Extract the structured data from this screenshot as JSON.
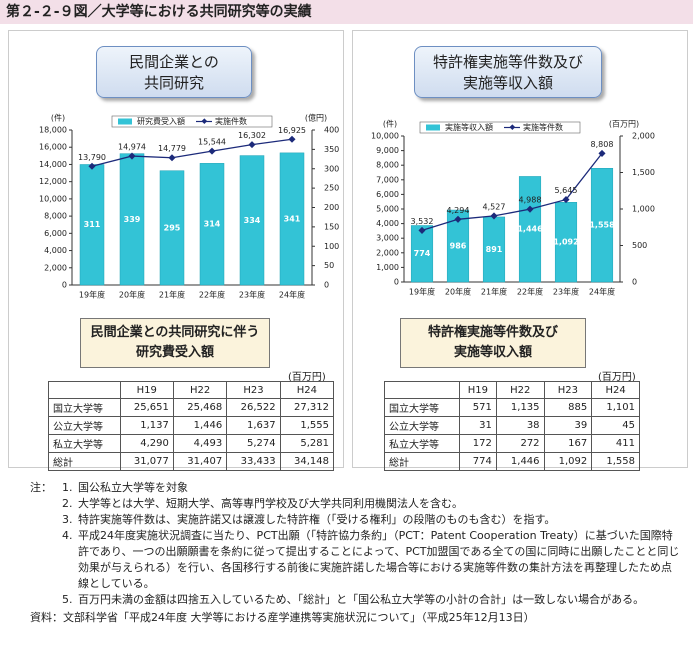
{
  "header": {
    "title": "第２-２-９図／大学等における共同研究等の実績"
  },
  "chart_data": [
    {
      "type": "combo",
      "title": "民間企業との\n共同研究",
      "categories": [
        "19年度",
        "20年度",
        "21年度",
        "22年度",
        "23年度",
        "24年度"
      ],
      "y_unit": "(件)",
      "y2_unit": "(億円)",
      "ylim": [
        0,
        18000
      ],
      "yticks": [
        0,
        {
          "value": 2000,
          "label": "2,000"
        },
        {
          "value": 4000,
          "label": "4,000"
        },
        {
          "value": 6000,
          "label": "6,000"
        },
        {
          "value": 8000,
          "label": "8,000"
        },
        {
          "value": 10000,
          "label": "10,000"
        },
        {
          "value": 12000,
          "label": "12,000"
        },
        {
          "value": 14000,
          "label": "14,000"
        },
        {
          "value": 16000,
          "label": "16,000"
        },
        {
          "value": 18000,
          "label": "18,000"
        }
      ],
      "y2lim": [
        0,
        400
      ],
      "y2ticks": [
        0,
        50,
        100,
        150,
        200,
        250,
        300,
        350,
        400
      ],
      "series": [
        {
          "name": "研究費受入額",
          "type": "bar",
          "axis": "y2",
          "color": "#33c3d6",
          "values": [
            311,
            339,
            295,
            314,
            334,
            341
          ]
        },
        {
          "name": "実施件数",
          "type": "line",
          "color": "#1c2a7a",
          "values": [
            13790,
            14974,
            14779,
            15544,
            16302,
            16925
          ],
          "value_labels": [
            "13,790",
            "14,974",
            "14,779",
            "15,544",
            "16,302",
            "16,925"
          ]
        }
      ]
    },
    {
      "type": "combo",
      "title": "特許権実施等件数及び\n実施等収入額",
      "categories": [
        "19年度",
        "20年度",
        "21年度",
        "22年度",
        "23年度",
        "24年度"
      ],
      "y_unit": "(件)",
      "y2_unit": "(百万円)",
      "ylim": [
        0,
        10000
      ],
      "yticks": [
        0,
        {
          "value": 1000,
          "label": "1,000"
        },
        {
          "value": 2000,
          "label": "2,000"
        },
        {
          "value": 3000,
          "label": "3,000"
        },
        {
          "value": 4000,
          "label": "4,000"
        },
        {
          "value": 5000,
          "label": "5,000"
        },
        {
          "value": 6000,
          "label": "6,000"
        },
        {
          "value": 7000,
          "label": "7,000"
        },
        {
          "value": 8000,
          "label": "8,000"
        },
        {
          "value": 9000,
          "label": "9,000"
        },
        {
          "value": 10000,
          "label": "10,000"
        }
      ],
      "y2lim": [
        0,
        2000
      ],
      "y2ticks": [
        0,
        500,
        {
          "value": 1000,
          "label": "1,000"
        },
        {
          "value": 1500,
          "label": "1,500"
        },
        {
          "value": 2000,
          "label": "2,000"
        }
      ],
      "series": [
        {
          "name": "実施等収入額",
          "type": "bar",
          "axis": "y2",
          "color": "#33c3d6",
          "values": [
            774,
            986,
            891,
            1446,
            1092,
            1558
          ],
          "value_labels": [
            "774",
            "986",
            "891",
            "1,446",
            "1,092",
            "1,558"
          ]
        },
        {
          "name": "実施等件数",
          "type": "line",
          "color": "#1c2a7a",
          "values": [
            3532,
            4294,
            4527,
            4988,
            5645,
            8808
          ],
          "value_labels": [
            "3,532",
            "4,294",
            "4,527",
            "4,988",
            "5,645",
            "8,808"
          ]
        }
      ]
    }
  ],
  "tables": [
    {
      "title": "民間企業との共同研究に伴う\n研究費受入額",
      "unit": "(百万円)",
      "columns": [
        "H19",
        "H22",
        "H23",
        "H24"
      ],
      "rows": [
        [
          "国立大学等",
          "25,651",
          "25,468",
          "26,522",
          "27,312"
        ],
        [
          "公立大学等",
          "1,137",
          "1,446",
          "1,637",
          "1,555"
        ],
        [
          "私立大学等",
          "4,290",
          "4,493",
          "5,274",
          "5,281"
        ],
        [
          "総計",
          "31,077",
          "31,407",
          "33,433",
          "34,148"
        ]
      ]
    },
    {
      "title": "特許権実施等件数及び\n実施等収入額",
      "unit": "(百万円)",
      "columns": [
        "H19",
        "H22",
        "H23",
        "H24"
      ],
      "rows": [
        [
          "国立大学等",
          "571",
          "1,135",
          "885",
          "1,101"
        ],
        [
          "公立大学等",
          "31",
          "38",
          "39",
          "45"
        ],
        [
          "私立大学等",
          "172",
          "272",
          "167",
          "411"
        ],
        [
          "総計",
          "774",
          "1,446",
          "1,092",
          "1,558"
        ]
      ]
    }
  ],
  "notes": {
    "label": "注：",
    "items": [
      {
        "number": "1.",
        "text": "国公私立大学等を対象"
      },
      {
        "number": "2.",
        "text": "大学等とは大学、短期大学、高等専門学校及び大学共同利用機関法人を含む。"
      },
      {
        "number": "3.",
        "text": "特許実施等件数は、実施許諾又は譲渡した特許権（「受ける権利」の段階のものも含む）を指す。"
      },
      {
        "number": "4.",
        "text": "平成24年度実施状況調査に当たり、PCT出願（「特許協力条約」（PCT：Patent Cooperation Treaty）に基づいた国際特許であり、一つの出願願書を条約に従って提出することによって、PCT加盟国である全ての国に同時に出願したことと同じ効果が与えられる）を行い、各国移行する前後に実施許諾した場合等における実施等件数の集計方法を再整理したため点線としている。"
      },
      {
        "number": "5.",
        "text": "百万円未満の金額は四捨五入しているため、「総計」と「国公私立大学等の小計の合計」は一致しない場合がある。"
      }
    ]
  },
  "source": "資料：文部科学省「平成24年度 大学等における産学連携等実施状況について」（平成25年12月13日）"
}
